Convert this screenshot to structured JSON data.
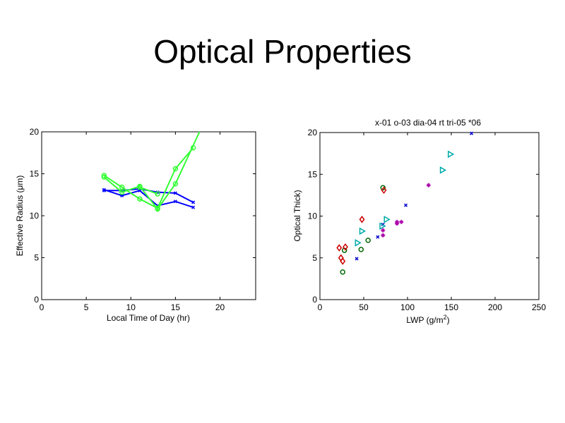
{
  "slide": {
    "title": "Optical Properties"
  },
  "chart_data": [
    {
      "type": "line",
      "title": "",
      "xlabel": "Local Time of Day (hr)",
      "ylabel": "Effective Radius (μm)",
      "xlim": [
        0,
        24
      ],
      "ylim": [
        0,
        20
      ],
      "xticks": [
        0,
        5,
        10,
        15,
        20
      ],
      "yticks": [
        0,
        5,
        10,
        15,
        20
      ],
      "grid": false,
      "series": [
        {
          "color": "#0000ff",
          "marker": "x",
          "x": [
            7,
            9,
            11,
            13,
            15,
            17
          ],
          "y": [
            13.1,
            12.4,
            13.0,
            11.2,
            11.7,
            11.0
          ]
        },
        {
          "color": "#0000ff",
          "marker": "x",
          "x": [
            7,
            9,
            11,
            13,
            15,
            17
          ],
          "y": [
            13.0,
            13.0,
            13.2,
            12.8,
            12.7,
            11.6
          ]
        },
        {
          "color": "#33ff33",
          "marker": "o",
          "x": [
            7,
            9,
            11,
            13,
            15,
            17
          ],
          "y": [
            14.8,
            13.4,
            12.0,
            10.9,
            15.6,
            18.1
          ]
        },
        {
          "color": "#33ff33",
          "marker": "o",
          "x": [
            7,
            9,
            11,
            13,
            15,
            17.7
          ],
          "y": [
            14.6,
            12.8,
            13.5,
            10.8,
            13.8,
            20
          ]
        },
        {
          "color": "#33ff33",
          "marker": "o",
          "x": [
            11,
            13
          ],
          "y": [
            13.4,
            12.6
          ]
        }
      ]
    },
    {
      "type": "scatter",
      "title": "x-01  o-03  dia-04 rt tri-05  *06",
      "xlabel": "LWP (g/m",
      "xlabel_sup": "2",
      "xlabel_end": ")",
      "ylabel": "Optical Thick)",
      "xlim": [
        0,
        250
      ],
      "ylim": [
        0,
        20
      ],
      "xticks": [
        0,
        50,
        100,
        150,
        200,
        250
      ],
      "yticks": [
        0,
        5,
        10,
        15,
        20
      ],
      "grid": false,
      "series": [
        {
          "marker": "x",
          "color": "#0000cc",
          "x": [
            42,
            66,
            72,
            98,
            173
          ],
          "y": [
            4.9,
            7.5,
            9.0,
            11.3,
            19.9
          ]
        },
        {
          "marker": "o",
          "color": "#006600",
          "x": [
            26,
            28,
            47,
            55,
            72
          ],
          "y": [
            3.3,
            5.9,
            6.0,
            7.1,
            13.4
          ]
        },
        {
          "marker": "diamond",
          "color": "#cc0000",
          "x": [
            22,
            24,
            26,
            29,
            48,
            73
          ],
          "y": [
            6.2,
            5.0,
            4.6,
            6.3,
            9.6,
            13.1
          ]
        },
        {
          "marker": "triangle-right",
          "color": "#00aaaa",
          "x": [
            43,
            48,
            71,
            76,
            140,
            149
          ],
          "y": [
            6.8,
            8.2,
            8.8,
            9.6,
            15.5,
            17.4
          ]
        },
        {
          "marker": "star",
          "color": "#aa00aa",
          "x": [
            72,
            88,
            93,
            124
          ],
          "y": [
            8.3,
            9.3,
            9.3,
            13.7
          ]
        },
        {
          "marker": "star",
          "color": "#aa00aa",
          "x": [
            72,
            88
          ],
          "y": [
            7.7,
            9.1
          ]
        }
      ]
    }
  ]
}
